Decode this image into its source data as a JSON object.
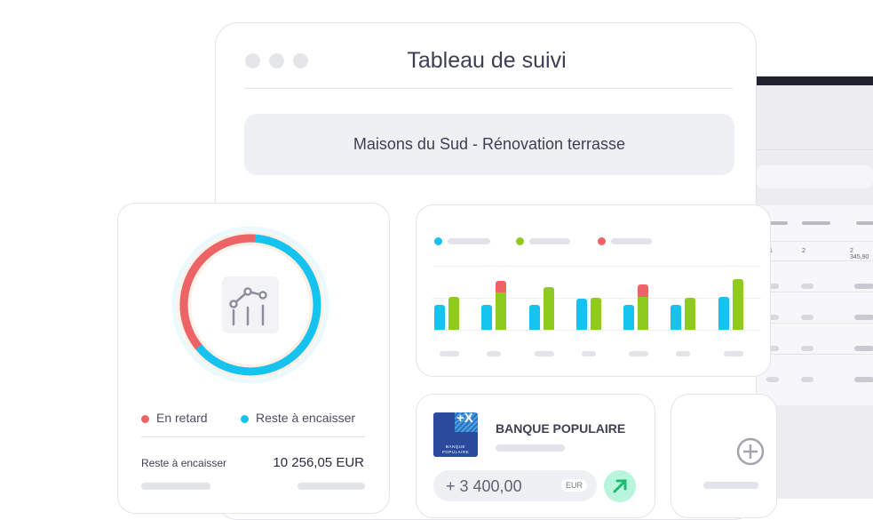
{
  "window": {
    "title": "Tableau de suivi",
    "project": "Maisons du Sud - Rénovation terrasse"
  },
  "colors": {
    "late": "#ee6466",
    "remaining": "#16c3ee",
    "green": "#8fca1e",
    "accent_green": "#b8f5dc"
  },
  "donut": {
    "late_fraction": 0.37,
    "icon": "chart-line-icon"
  },
  "legend": {
    "late": "En retard",
    "remaining": "Reste à encaisser"
  },
  "summary": {
    "label": "Reste à encaisser",
    "value": "10 256,05 EUR"
  },
  "chart_data": {
    "type": "bar",
    "groups": [
      {
        "blue": 28,
        "green": 37,
        "red": 0
      },
      {
        "blue": 28,
        "green": 42,
        "red": 13
      },
      {
        "blue": 28,
        "green": 48,
        "red": 0
      },
      {
        "blue": 35,
        "green": 36,
        "red": 0
      },
      {
        "blue": 28,
        "green": 37,
        "red": 14
      },
      {
        "blue": 28,
        "green": 36,
        "red": 0
      },
      {
        "blue": 37,
        "green": 57,
        "red": 0
      }
    ]
  },
  "bank": {
    "name": "BANQUE POPULAIRE",
    "logo_text": "BANQUE POPULAIRE",
    "amount": "+ 3 400,00",
    "currency": "EUR",
    "icon": "arrow-up-right-icon"
  },
  "add": {
    "icon": "plus-circle-icon"
  },
  "table": {
    "row1": [
      "1",
      "2",
      "2 345,90"
    ]
  }
}
